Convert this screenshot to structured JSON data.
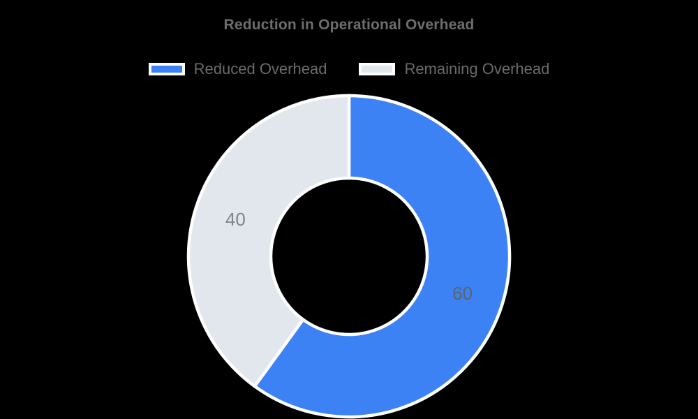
{
  "page": {
    "background": "#000000"
  },
  "chart_data": {
    "type": "pie",
    "variant": "donut",
    "title": "Reduction in Operational Overhead",
    "title_color": "#6d6d6d",
    "legend_position": "top",
    "legend_text_color": "#6b6b6b",
    "slice_text": "value",
    "start_angle_deg": 0,
    "hole_ratio": 0.487,
    "stroke_color": "#ffffff",
    "total": 100,
    "slices": [
      {
        "label": "Reduced Overhead",
        "value": 60,
        "color": "#3d82f4",
        "label_color": "#5a636d"
      },
      {
        "label": "Remaining Overhead",
        "value": 40,
        "color": "#e2e7ee",
        "label_color": "#7f848b"
      }
    ]
  }
}
